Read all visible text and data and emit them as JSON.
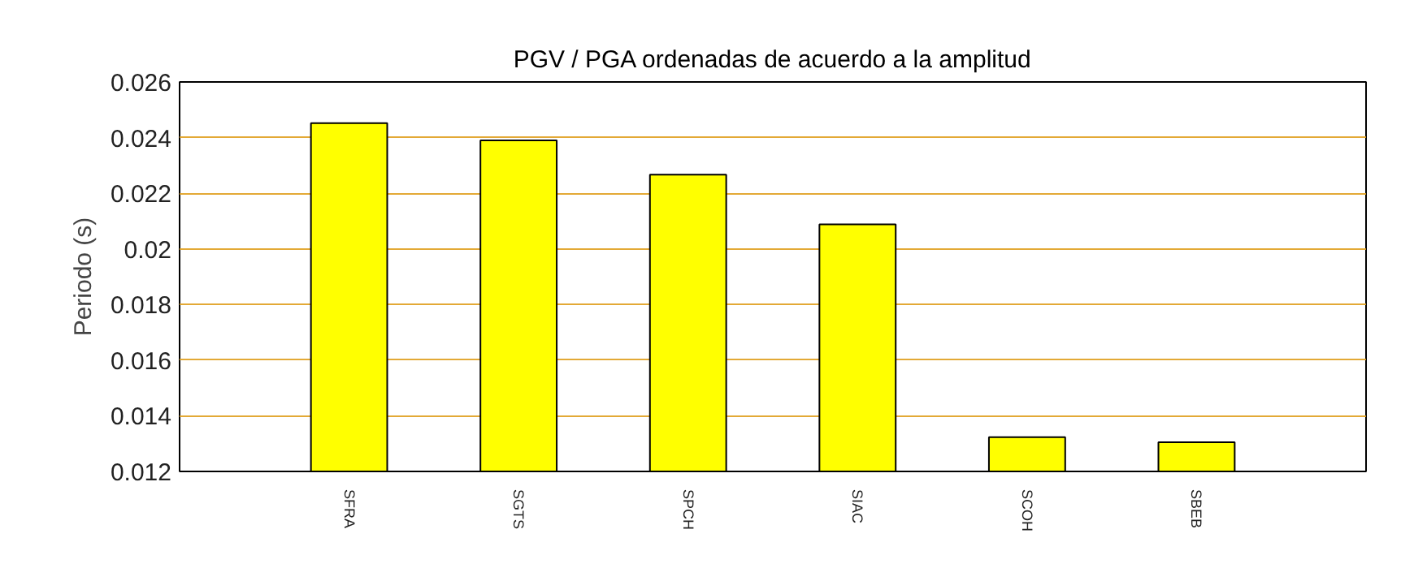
{
  "chart_data": {
    "type": "bar",
    "title": "PGV / PGA ordenadas de acuerdo a la amplitud",
    "ylabel": "Periodo (s)",
    "categories": [
      "SFRA",
      "SGTS",
      "SPCH",
      "SIAC",
      "SCOH",
      "SBEB"
    ],
    "values": [
      0.02452,
      0.0239,
      0.02267,
      0.02088,
      0.01323,
      0.01305
    ],
    "color": "#ffff00",
    "ylim": [
      0.012,
      0.026
    ],
    "yticks": [
      0.012,
      0.014,
      0.016,
      0.018,
      0.02,
      0.022,
      0.024,
      0.026
    ],
    "grid": "y"
  }
}
